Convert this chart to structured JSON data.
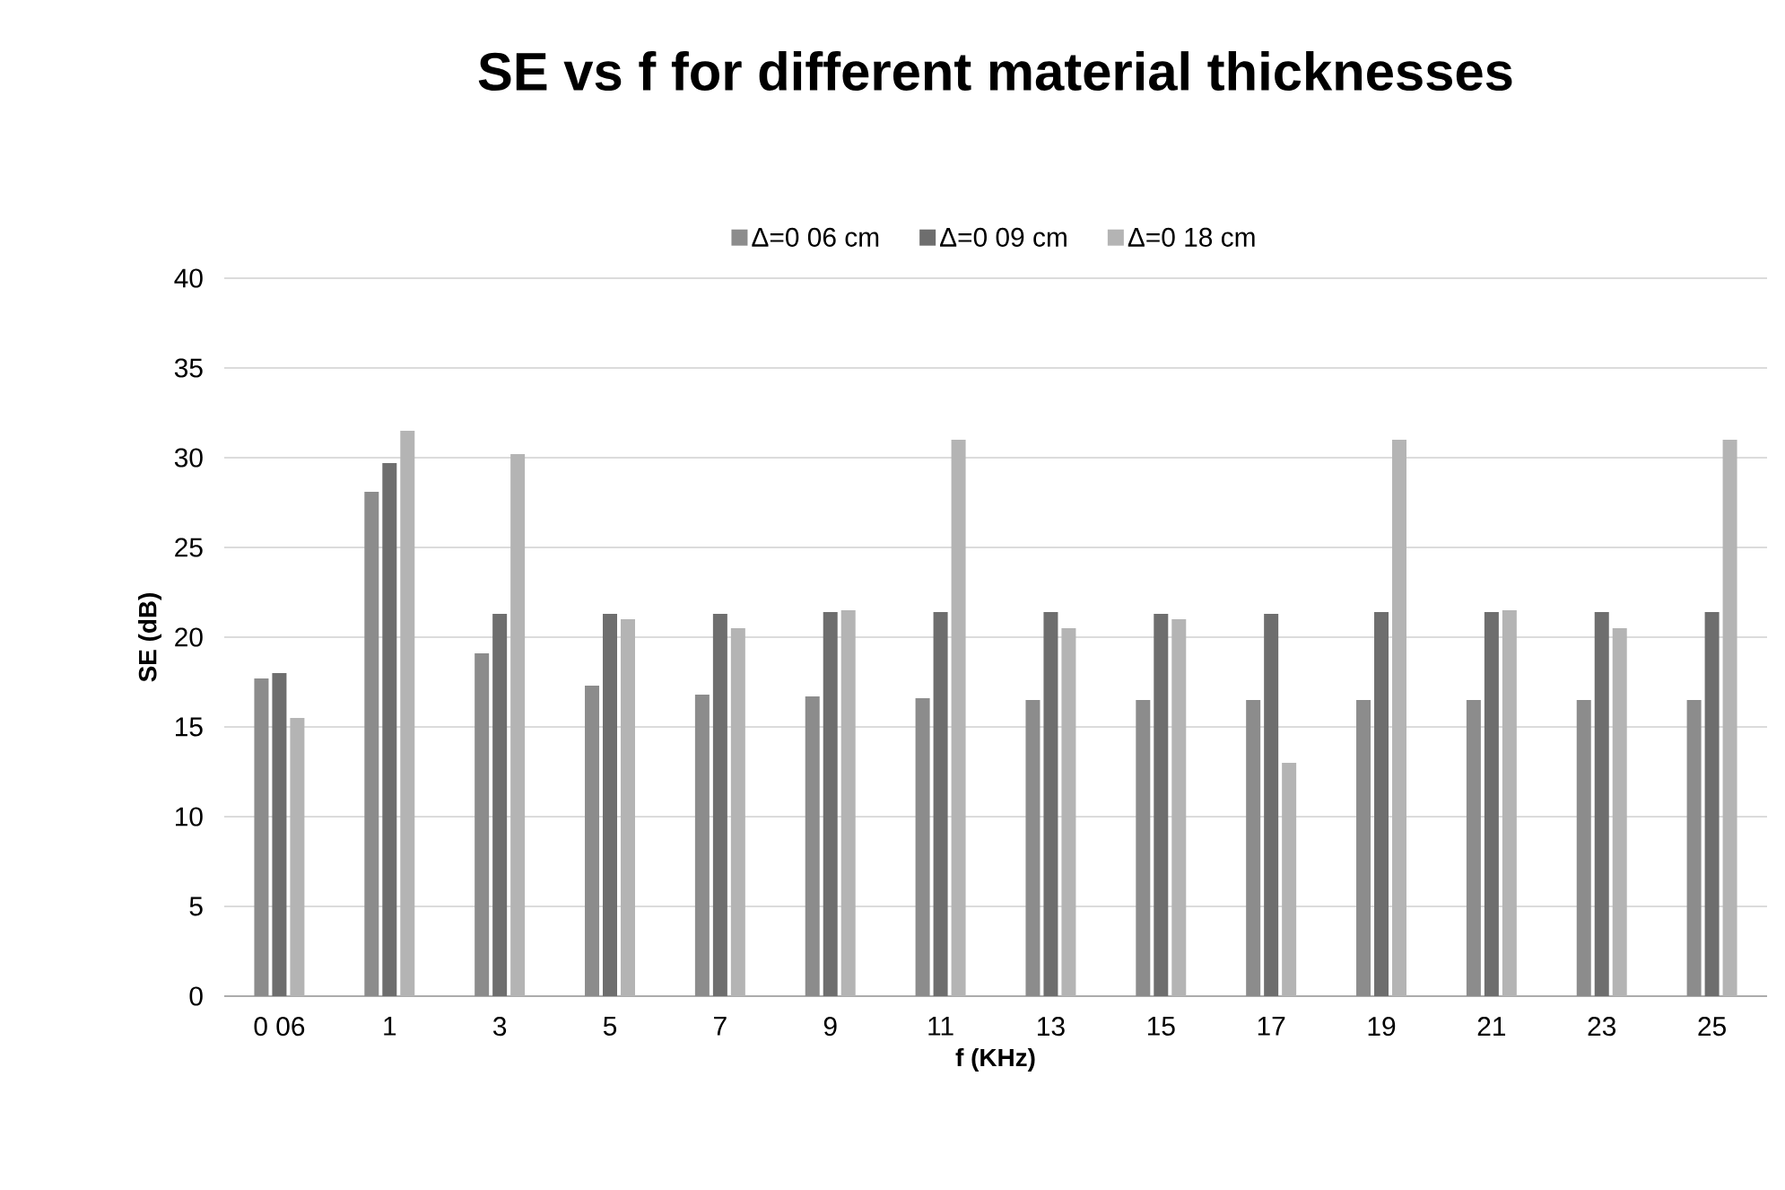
{
  "chart_data": {
    "type": "bar",
    "title": "SE vs f for different material thicknesses",
    "xlabel": "f (KHz)",
    "ylabel": "SE (dB)",
    "categories": [
      "0 06",
      "1",
      "3",
      "5",
      "7",
      "9",
      "11",
      "13",
      "15",
      "17",
      "19",
      "21",
      "23",
      "25"
    ],
    "series": [
      {
        "name": "Δ=0 06 cm",
        "color": "#8c8c8c",
        "values": [
          17.7,
          28.1,
          19.1,
          17.3,
          16.8,
          16.7,
          16.6,
          16.5,
          16.5,
          16.5,
          16.5,
          16.5,
          16.5,
          16.5
        ]
      },
      {
        "name": "Δ=0 09 cm",
        "color": "#6e6e6e",
        "values": [
          18.0,
          29.7,
          21.3,
          21.3,
          21.3,
          21.4,
          21.4,
          21.4,
          21.3,
          21.3,
          21.4,
          21.4,
          21.4,
          21.4
        ]
      },
      {
        "name": "Δ=0 18 cm",
        "color": "#b4b4b4",
        "values": [
          15.5,
          31.5,
          30.2,
          21.0,
          20.5,
          21.5,
          31.0,
          20.5,
          21.0,
          13.0,
          31.0,
          21.5,
          20.5,
          31.0
        ]
      }
    ],
    "ylim": [
      0,
      40
    ],
    "yticks": [
      0,
      5,
      10,
      15,
      20,
      25,
      30,
      35,
      40
    ],
    "grid": "y",
    "legend": "top"
  }
}
